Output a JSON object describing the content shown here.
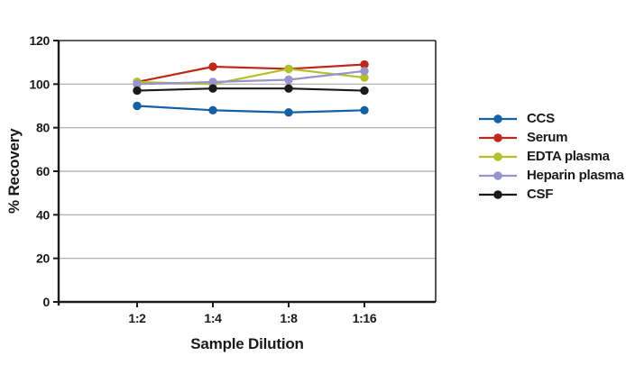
{
  "figure": {
    "background": "#ffffff"
  },
  "chart_data": {
    "type": "line",
    "title": "",
    "xlabel": "Sample Dilution",
    "ylabel": "% Recovery",
    "categories": [
      "1:2",
      "1:4",
      "1:8",
      "1:16"
    ],
    "y_axis": {
      "min": 0,
      "max": 120,
      "tick_step": 20,
      "ticks": [
        0,
        20,
        40,
        60,
        80,
        100,
        120
      ]
    },
    "grid": "horizontal-only",
    "legend_position": "right-outside",
    "marker": "circle",
    "series": [
      {
        "name": "CCS",
        "color": "#155fa5",
        "values": [
          90,
          88,
          87,
          88
        ]
      },
      {
        "name": "Serum",
        "color": "#c0271b",
        "values": [
          101,
          108,
          107,
          109
        ]
      },
      {
        "name": "EDTA plasma",
        "color": "#b3c02a",
        "values": [
          101,
          100,
          107,
          103
        ]
      },
      {
        "name": "Heparin plasma",
        "color": "#9793cb",
        "values": [
          100,
          101,
          102,
          106
        ]
      },
      {
        "name": "CSF",
        "color": "#1a1a1a",
        "values": [
          97,
          98,
          98,
          97
        ]
      }
    ]
  },
  "colors": {
    "axis": "#1a1a1a",
    "plot_border": "#2b2b2b",
    "gridline": "#a8a8a8",
    "text": "#1a1a1a"
  }
}
